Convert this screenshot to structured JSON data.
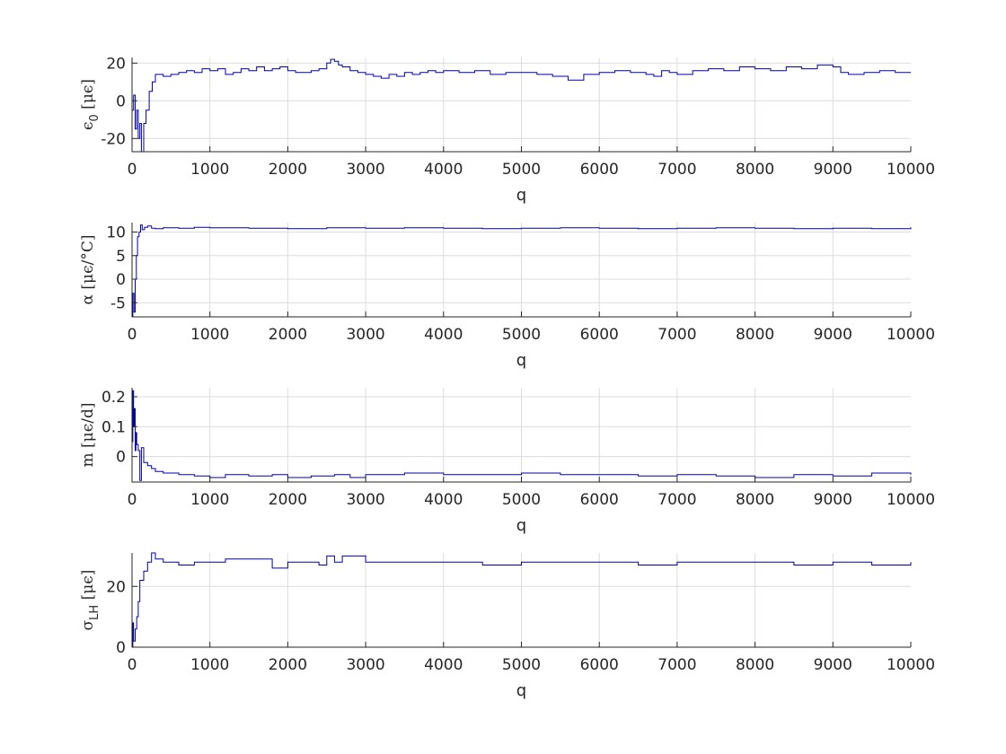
{
  "chart_data": [
    {
      "type": "line",
      "xlabel": "q",
      "ylabel": "ϵ₀ [μϵ]",
      "ylabel_parts": {
        "symbol": "ϵ",
        "sub": "0",
        "unit": " [μϵ]"
      },
      "xlim": [
        0,
        10000
      ],
      "ylim": [
        -27,
        23
      ],
      "xticks": [
        0,
        1000,
        2000,
        3000,
        4000,
        5000,
        6000,
        7000,
        8000,
        9000,
        10000
      ],
      "yticks": [
        -20,
        0,
        20
      ],
      "grid": true,
      "series": [
        {
          "color": "#0000aa",
          "x": [
            0,
            20,
            40,
            60,
            80,
            100,
            120,
            150,
            180,
            220,
            260,
            300,
            350,
            400,
            500,
            600,
            700,
            800,
            900,
            1000,
            1100,
            1200,
            1300,
            1400,
            1500,
            1600,
            1700,
            1800,
            1900,
            2000,
            2100,
            2200,
            2300,
            2400,
            2500,
            2550,
            2600,
            2650,
            2700,
            2800,
            2900,
            3000,
            3100,
            3200,
            3300,
            3400,
            3500,
            3600,
            3700,
            3800,
            3900,
            4000,
            4200,
            4400,
            4600,
            4800,
            5000,
            5200,
            5400,
            5600,
            5800,
            6000,
            6200,
            6400,
            6600,
            6700,
            6800,
            6900,
            7000,
            7200,
            7400,
            7600,
            7800,
            8000,
            8200,
            8400,
            8600,
            8800,
            9000,
            9100,
            9200,
            9400,
            9600,
            9800,
            10000
          ],
          "y": [
            -5,
            3,
            -15,
            -5,
            -20,
            -12,
            -27,
            -12,
            -5,
            5,
            10,
            14,
            14,
            13,
            14,
            15,
            16,
            15,
            17,
            16,
            17,
            14,
            15,
            17,
            16,
            18,
            16,
            17,
            18,
            16,
            15,
            15,
            16,
            17,
            20,
            22,
            21,
            19,
            18,
            16,
            15,
            14,
            13,
            12,
            14,
            13,
            15,
            14,
            15,
            16,
            15,
            16,
            15,
            16,
            14,
            15,
            15,
            14,
            13,
            11,
            14,
            15,
            16,
            15,
            14,
            13,
            16,
            15,
            14,
            16,
            17,
            16,
            18,
            17,
            16,
            18,
            17,
            19,
            18,
            15,
            14,
            15,
            16,
            15,
            15
          ]
        }
      ]
    },
    {
      "type": "line",
      "xlabel": "q",
      "ylabel": "α [μϵ/°C]",
      "ylabel_parts": {
        "symbol": "α",
        "sub": "",
        "unit": " [μϵ/°C]"
      },
      "xlim": [
        0,
        10000
      ],
      "ylim": [
        -8,
        12
      ],
      "xticks": [
        0,
        1000,
        2000,
        3000,
        4000,
        5000,
        6000,
        7000,
        8000,
        9000,
        10000
      ],
      "yticks": [
        -5,
        0,
        5,
        10
      ],
      "grid": true,
      "series": [
        {
          "color": "#0000aa",
          "x": [
            0,
            10,
            25,
            40,
            55,
            70,
            90,
            110,
            130,
            160,
            200,
            250,
            300,
            400,
            600,
            800,
            1000,
            1500,
            2000,
            2500,
            3000,
            3500,
            4000,
            4500,
            5000,
            5500,
            6000,
            6500,
            7000,
            7500,
            8000,
            8500,
            9000,
            9500,
            10000
          ],
          "y": [
            -8,
            -3,
            -7,
            0,
            5,
            9,
            10,
            11.5,
            10.5,
            11,
            11.3,
            10.8,
            10.7,
            10.9,
            10.8,
            11,
            10.9,
            10.8,
            10.7,
            10.9,
            10.8,
            10.9,
            10.8,
            10.7,
            10.8,
            10.9,
            10.8,
            10.7,
            10.8,
            10.9,
            10.8,
            10.7,
            10.8,
            10.7,
            11
          ]
        }
      ]
    },
    {
      "type": "line",
      "xlabel": "q",
      "ylabel": "m [μϵ/d]",
      "ylabel_parts": {
        "symbol": "m",
        "sub": "",
        "unit": " [μϵ/d]"
      },
      "xlim": [
        0,
        10000
      ],
      "ylim": [
        -0.085,
        0.23
      ],
      "xticks": [
        0,
        1000,
        2000,
        3000,
        4000,
        5000,
        6000,
        7000,
        8000,
        9000,
        10000
      ],
      "yticks": [
        0,
        0.1,
        0.2
      ],
      "grid": true,
      "series": [
        {
          "color": "#0000aa",
          "x": [
            0,
            10,
            20,
            30,
            40,
            50,
            60,
            80,
            100,
            120,
            150,
            200,
            250,
            300,
            400,
            600,
            800,
            1000,
            1200,
            1500,
            1800,
            2000,
            2300,
            2600,
            2800,
            3000,
            3500,
            4000,
            4500,
            5000,
            5500,
            6000,
            6500,
            7000,
            7500,
            8000,
            8500,
            9000,
            9500,
            10000
          ],
          "y": [
            0.05,
            0.22,
            0.1,
            0.16,
            0.02,
            0.08,
            0.04,
            0.02,
            -0.08,
            0.03,
            -0.02,
            -0.03,
            -0.04,
            -0.05,
            -0.055,
            -0.06,
            -0.065,
            -0.07,
            -0.06,
            -0.065,
            -0.06,
            -0.07,
            -0.065,
            -0.06,
            -0.07,
            -0.06,
            -0.055,
            -0.06,
            -0.06,
            -0.055,
            -0.06,
            -0.06,
            -0.065,
            -0.06,
            -0.065,
            -0.07,
            -0.06,
            -0.065,
            -0.055,
            -0.06
          ]
        }
      ]
    },
    {
      "type": "line",
      "xlabel": "q",
      "ylabel": "σLH [μϵ]",
      "ylabel_parts": {
        "symbol": "σ",
        "sub": "LH",
        "unit": " [μϵ]"
      },
      "xlim": [
        0,
        10000
      ],
      "ylim": [
        0,
        31
      ],
      "xticks": [
        0,
        1000,
        2000,
        3000,
        4000,
        5000,
        6000,
        7000,
        8000,
        9000,
        10000
      ],
      "yticks": [
        0,
        20
      ],
      "grid": true,
      "series": [
        {
          "color": "#0000aa",
          "x": [
            0,
            10,
            20,
            40,
            60,
            80,
            100,
            150,
            200,
            250,
            300,
            400,
            500,
            600,
            800,
            1000,
            1200,
            1500,
            1800,
            2000,
            2200,
            2400,
            2500,
            2600,
            2700,
            3000,
            3500,
            4000,
            4500,
            5000,
            5500,
            6000,
            6500,
            7000,
            7500,
            8000,
            8500,
            9000,
            9500,
            10000
          ],
          "y": [
            0,
            8,
            2,
            6,
            10,
            15,
            22,
            25,
            28,
            31,
            29,
            28,
            28,
            27,
            28,
            28,
            29,
            29,
            26,
            28,
            28,
            27,
            30,
            28,
            30,
            28,
            28,
            28,
            27,
            28,
            28,
            28,
            27,
            28,
            28,
            28,
            27,
            28,
            27,
            28
          ]
        }
      ]
    }
  ]
}
